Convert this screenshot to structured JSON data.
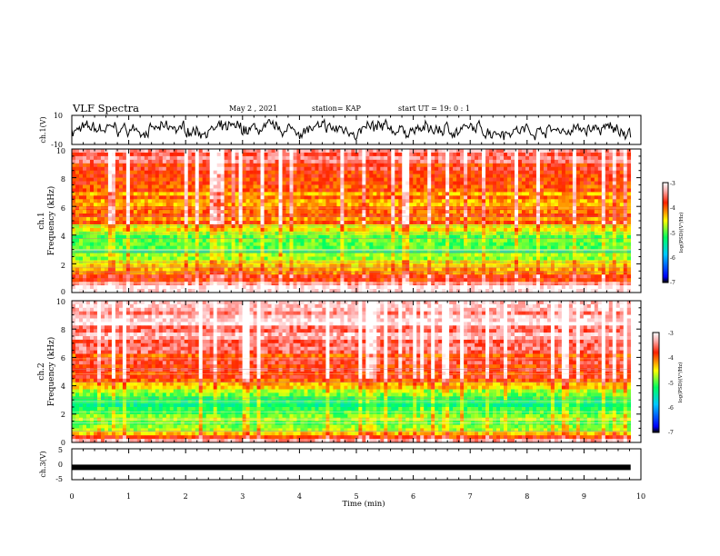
{
  "header": {
    "title": "VLF Spectra",
    "date": "May 2 , 2021",
    "station": "station= KAP",
    "start": "start  UT =   19: 0  : 1"
  },
  "chart_data": [
    {
      "type": "line",
      "panel": "ch1-waveform",
      "ylabel": "ch.1(V)",
      "ylim": [
        -10,
        10
      ],
      "y_ticks": [
        "10",
        "-10"
      ],
      "xlim": [
        0,
        10
      ],
      "line_color": "#000000",
      "signal_extent_min": 9.82,
      "envelope_volts": [
        -7,
        7
      ]
    },
    {
      "type": "heatmap",
      "panel": "ch1-spectrogram",
      "ylabel": "ch.1",
      "ylabel2": "Frequency  (kHz)",
      "ylim": [
        0,
        10
      ],
      "y_ticks": [
        "0",
        "2",
        "4",
        "6",
        "8",
        "10"
      ],
      "xlim": [
        0,
        10
      ],
      "data_extent_min": 9.82,
      "colorbar": {
        "label": "log(PSD)(V²/Hz)",
        "range": [
          -7,
          -3
        ],
        "ticks": [
          "-3",
          "-4",
          "-5",
          "-6",
          "-7"
        ]
      },
      "bands_khz": [
        {
          "freq": 0.3,
          "log_psd": -3.2
        },
        {
          "freq": 0.6,
          "log_psd": -3.4
        },
        {
          "freq": 0.9,
          "log_psd": -3.7
        },
        {
          "freq": 1.4,
          "log_psd": -4.2
        },
        {
          "freq": 2.0,
          "log_psd": -4.6
        },
        {
          "freq": 2.9,
          "log_psd": -5.1
        },
        {
          "freq": 3.6,
          "log_psd": -5.0
        },
        {
          "freq": 4.4,
          "log_psd": -4.6
        },
        {
          "freq": 5.0,
          "log_psd": -4.0
        },
        {
          "freq": 5.5,
          "log_psd": -4.1
        },
        {
          "freq": 6.2,
          "log_psd": -4.3
        },
        {
          "freq": 7.0,
          "log_psd": -4.1
        },
        {
          "freq": 8.0,
          "log_psd": -3.8
        },
        {
          "freq": 9.0,
          "log_psd": -3.6
        },
        {
          "freq": 9.8,
          "log_psd": -3.4
        }
      ]
    },
    {
      "type": "heatmap",
      "panel": "ch2-spectrogram",
      "ylabel": "ch.2",
      "ylabel2": "Frequency  (kHz)",
      "ylim": [
        0,
        10
      ],
      "y_ticks": [
        "0",
        "2",
        "4",
        "6",
        "8",
        "10"
      ],
      "xlim": [
        0,
        10
      ],
      "data_extent_min": 9.82,
      "colorbar": {
        "label": "log(PSD)(V²/Hz)",
        "range": [
          -7,
          -3
        ],
        "ticks": [
          "-3",
          "-4",
          "-5",
          "-6",
          "-7"
        ]
      },
      "bands_khz": [
        {
          "freq": 0.3,
          "log_psd": -3.6
        },
        {
          "freq": 0.8,
          "log_psd": -4.5
        },
        {
          "freq": 1.4,
          "log_psd": -4.8
        },
        {
          "freq": 2.0,
          "log_psd": -4.9
        },
        {
          "freq": 2.7,
          "log_psd": -5.2
        },
        {
          "freq": 3.4,
          "log_psd": -5.0
        },
        {
          "freq": 4.2,
          "log_psd": -4.4
        },
        {
          "freq": 4.9,
          "log_psd": -3.6
        },
        {
          "freq": 5.6,
          "log_psd": -3.7
        },
        {
          "freq": 6.3,
          "log_psd": -3.8
        },
        {
          "freq": 7.2,
          "log_psd": -3.5
        },
        {
          "freq": 8.2,
          "log_psd": -3.3
        },
        {
          "freq": 9.2,
          "log_psd": -3.2
        },
        {
          "freq": 9.9,
          "log_psd": -3.1
        }
      ]
    },
    {
      "type": "line",
      "panel": "ch3-waveform",
      "ylabel": "ch.3(V)",
      "ylim": [
        -5,
        5
      ],
      "y_ticks": [
        "5",
        "0",
        "-5"
      ],
      "xlim": [
        0,
        10
      ],
      "line_color": "#000000",
      "signal_extent_min": 9.82,
      "signal_level_volts": -1.0,
      "x_ticks": [
        "0",
        "1",
        "2",
        "3",
        "4",
        "5",
        "6",
        "7",
        "8",
        "9",
        "10"
      ],
      "xlabel": "Time  (min)"
    }
  ]
}
